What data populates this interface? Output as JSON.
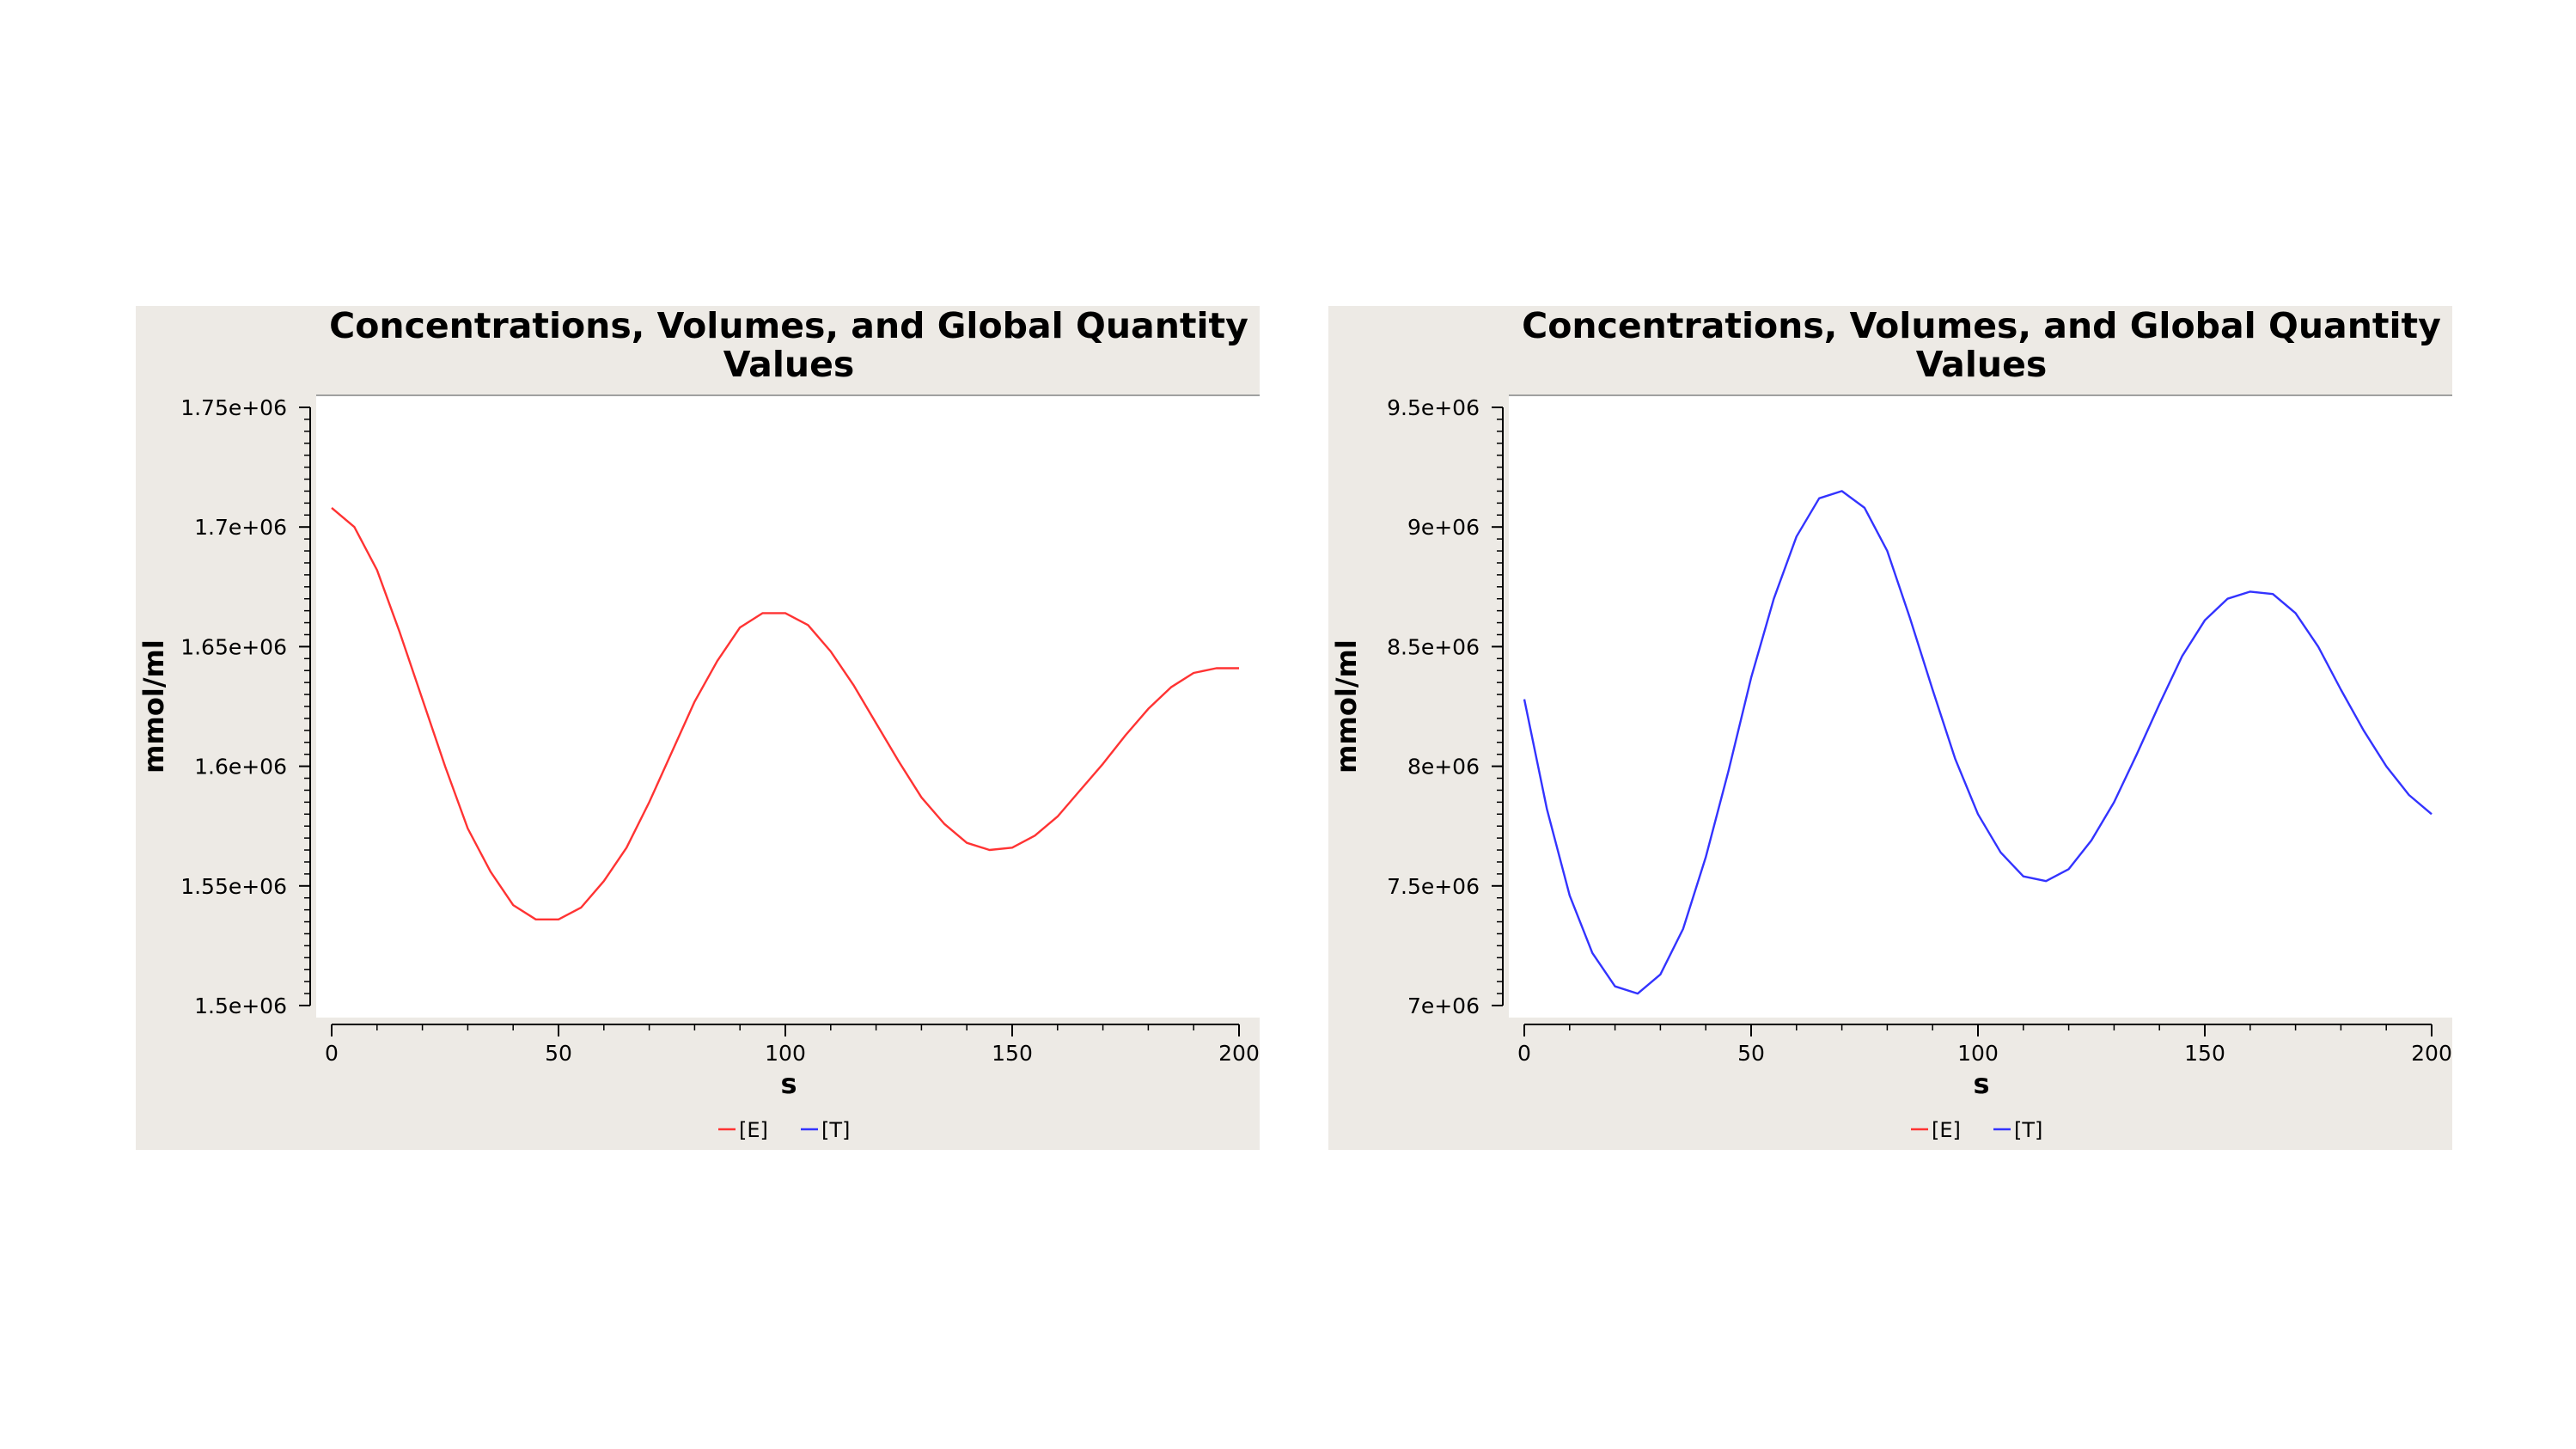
{
  "chart_data": [
    {
      "type": "line",
      "title": "Concentrations, Volumes, and Global Quantity Values",
      "title_lines": [
        "Concentrations, Volumes, and Global Quantity",
        "Values"
      ],
      "xlabel": "s",
      "ylabel": "mmol/ml",
      "xlim": [
        0,
        200
      ],
      "ylim": [
        1500000,
        1750000
      ],
      "xticks": [
        0,
        50,
        100,
        150,
        200
      ],
      "xtick_labels": [
        "0",
        "50",
        "100",
        "150",
        "200"
      ],
      "yticks": [
        1500000,
        1550000,
        1600000,
        1650000,
        1700000,
        1750000
      ],
      "ytick_labels": [
        "1.5e+06",
        "1.55e+06",
        "1.6e+06",
        "1.65e+06",
        "1.7e+06",
        "1.75e+06"
      ],
      "grid": false,
      "legend_position": "bottom-center",
      "legend": [
        {
          "name": "[E]",
          "color": "#ff3333"
        },
        {
          "name": "[T]",
          "color": "#3333ff"
        }
      ],
      "series": [
        {
          "name": "[E]",
          "color": "#ff3333",
          "x": [
            0,
            5,
            10,
            15,
            20,
            25,
            30,
            35,
            40,
            45,
            50,
            55,
            60,
            65,
            70,
            75,
            80,
            85,
            90,
            95,
            100,
            105,
            110,
            115,
            120,
            125,
            130,
            135,
            140,
            145,
            150,
            155,
            160,
            165,
            170,
            175,
            180,
            185,
            190,
            195,
            200
          ],
          "values": [
            1708000,
            1700000,
            1682000,
            1656000,
            1628000,
            1600000,
            1574000,
            1556000,
            1542000,
            1536000,
            1536000,
            1541000,
            1552000,
            1566000,
            1585000,
            1606000,
            1627000,
            1644000,
            1658000,
            1664000,
            1664000,
            1659000,
            1648000,
            1634000,
            1618000,
            1602000,
            1587000,
            1576000,
            1568000,
            1565000,
            1566000,
            1571000,
            1579000,
            1590000,
            1601000,
            1613000,
            1624000,
            1633000,
            1639000,
            1641000,
            1641000
          ]
        }
      ]
    },
    {
      "type": "line",
      "title": "Concentrations, Volumes, and Global Quantity Values",
      "title_lines": [
        "Concentrations, Volumes, and Global Quantity",
        "Values"
      ],
      "xlabel": "s",
      "ylabel": "mmol/ml",
      "xlim": [
        0,
        200
      ],
      "ylim": [
        7000000,
        9500000
      ],
      "xticks": [
        0,
        50,
        100,
        150,
        200
      ],
      "xtick_labels": [
        "0",
        "50",
        "100",
        "150",
        "200"
      ],
      "yticks": [
        7000000,
        7500000,
        8000000,
        8500000,
        9000000,
        9500000
      ],
      "ytick_labels": [
        "7e+06",
        "7.5e+06",
        "8e+06",
        "8.5e+06",
        "9e+06",
        "9.5e+06"
      ],
      "grid": false,
      "legend_position": "bottom-center",
      "legend": [
        {
          "name": "[E]",
          "color": "#ff3333"
        },
        {
          "name": "[T]",
          "color": "#3333ff"
        }
      ],
      "series": [
        {
          "name": "[T]",
          "color": "#3333ff",
          "x": [
            0,
            5,
            10,
            15,
            20,
            25,
            30,
            35,
            40,
            45,
            50,
            55,
            60,
            65,
            70,
            75,
            80,
            85,
            90,
            95,
            100,
            105,
            110,
            115,
            120,
            125,
            130,
            135,
            140,
            145,
            150,
            155,
            160,
            165,
            170,
            175,
            180,
            185,
            190,
            195,
            200
          ],
          "values": [
            8280000,
            7820000,
            7460000,
            7220000,
            7080000,
            7050000,
            7130000,
            7320000,
            7620000,
            7980000,
            8370000,
            8700000,
            8960000,
            9120000,
            9150000,
            9080000,
            8900000,
            8620000,
            8320000,
            8030000,
            7800000,
            7640000,
            7540000,
            7520000,
            7570000,
            7690000,
            7850000,
            8050000,
            8260000,
            8460000,
            8610000,
            8700000,
            8730000,
            8720000,
            8640000,
            8500000,
            8320000,
            8150000,
            8000000,
            7880000,
            7800000
          ]
        }
      ]
    }
  ]
}
